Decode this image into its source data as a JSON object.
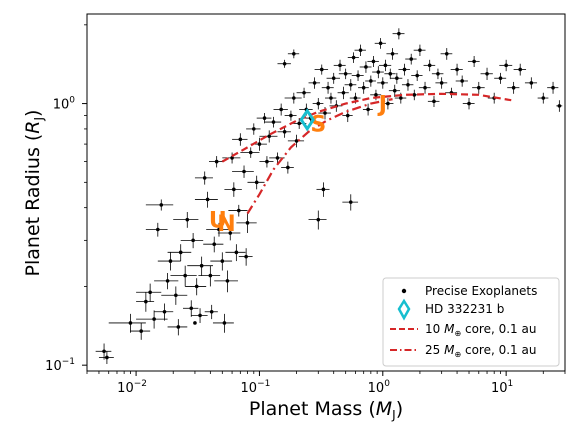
{
  "chart_data": {
    "type": "scatter",
    "title": "",
    "xlabel": "Planet Mass ($M_\\mathrm{J}$)",
    "ylabel": "Planet Radius ($R_\\mathrm{J}$)",
    "x_scale": "log",
    "y_scale": "log",
    "xlim": [
      0.004,
      30
    ],
    "ylim": [
      0.095,
      2.2
    ],
    "x_ticks": [
      {
        "value": 0.01,
        "base": "10",
        "exp": "−2"
      },
      {
        "value": 0.1,
        "base": "10",
        "exp": "−1"
      },
      {
        "value": 1,
        "base": "10",
        "exp": "0"
      },
      {
        "value": 10,
        "base": "10",
        "exp": "1"
      }
    ],
    "y_ticks": [
      {
        "value": 0.1,
        "base": "10",
        "exp": "−1"
      },
      {
        "value": 1,
        "base": "10",
        "exp": "0"
      }
    ],
    "legend_position": "lower right",
    "legend": [
      {
        "label": "Precise Exoplanets",
        "marker": "dot",
        "color": "#000000"
      },
      {
        "label": "HD 332231 b",
        "marker": "diamond",
        "color": "#17becf"
      },
      {
        "label": "10 $M_\\oplus$ core, 0.1 au",
        "marker": "dashed",
        "color": "#d62728"
      },
      {
        "label": "25 $M_\\oplus$ core, 0.1 au",
        "marker": "dashdot",
        "color": "#d62728"
      }
    ],
    "series": [
      {
        "name": "Precise Exoplanets",
        "color": "#000000",
        "points": [
          [
            0.0055,
            0.113,
            0.0008,
            0.008
          ],
          [
            0.0058,
            0.107,
            0.0008,
            0.006
          ],
          [
            0.009,
            0.145,
            0.003,
            0.012
          ],
          [
            0.011,
            0.135,
            0.002,
            0.01
          ],
          [
            0.012,
            0.175,
            0.002,
            0.015
          ],
          [
            0.013,
            0.19,
            0.003,
            0.015
          ],
          [
            0.014,
            0.15,
            0.004,
            0.012
          ],
          [
            0.015,
            0.33,
            0.003,
            0.02
          ],
          [
            0.016,
            0.41,
            0.004,
            0.02
          ],
          [
            0.017,
            0.16,
            0.003,
            0.012
          ],
          [
            0.018,
            0.21,
            0.004,
            0.015
          ],
          [
            0.019,
            0.25,
            0.004,
            0.02
          ],
          [
            0.021,
            0.185,
            0.005,
            0.015
          ],
          [
            0.022,
            0.14,
            0.004,
            0.01
          ],
          [
            0.023,
            0.27,
            0.005,
            0.02
          ],
          [
            0.025,
            0.22,
            0.006,
            0.02
          ],
          [
            0.026,
            0.36,
            0.006,
            0.025
          ],
          [
            0.028,
            0.165,
            0.004,
            0.012
          ],
          [
            0.029,
            0.3,
            0.006,
            0.02
          ],
          [
            0.031,
            0.2,
            0.006,
            0.015
          ],
          [
            0.033,
            0.155,
            0.005,
            0.01
          ],
          [
            0.034,
            0.24,
            0.008,
            0.02
          ],
          [
            0.036,
            0.52,
            0.006,
            0.03
          ],
          [
            0.038,
            0.43,
            0.008,
            0.03
          ],
          [
            0.04,
            0.22,
            0.008,
            0.02
          ],
          [
            0.041,
            0.16,
            0.005,
            0.01
          ],
          [
            0.043,
            0.29,
            0.008,
            0.02
          ],
          [
            0.045,
            0.6,
            0.006,
            0.03
          ],
          [
            0.047,
            0.33,
            0.01,
            0.02
          ],
          [
            0.05,
            0.25,
            0.01,
            0.02
          ],
          [
            0.052,
            0.145,
            0.01,
            0.012
          ],
          [
            0.055,
            0.21,
            0.012,
            0.02
          ],
          [
            0.058,
            0.32,
            0.012,
            0.02
          ],
          [
            0.06,
            0.62,
            0.01,
            0.03
          ],
          [
            0.062,
            0.47,
            0.01,
            0.03
          ],
          [
            0.065,
            0.27,
            0.012,
            0.02
          ],
          [
            0.068,
            0.39,
            0.012,
            0.02
          ],
          [
            0.07,
            0.73,
            0.01,
            0.04
          ],
          [
            0.075,
            0.55,
            0.015,
            0.03
          ],
          [
            0.078,
            0.26,
            0.01,
            0.02
          ],
          [
            0.08,
            0.35,
            0.015,
            0.03
          ],
          [
            0.085,
            0.65,
            0.015,
            0.03
          ],
          [
            0.09,
            0.8,
            0.012,
            0.04
          ],
          [
            0.095,
            0.5,
            0.015,
            0.03
          ],
          [
            0.1,
            0.7,
            0.015,
            0.04
          ],
          [
            0.11,
            0.88,
            0.015,
            0.04
          ],
          [
            0.115,
            0.6,
            0.015,
            0.03
          ],
          [
            0.12,
            0.75,
            0.02,
            0.04
          ],
          [
            0.13,
            0.85,
            0.02,
            0.04
          ],
          [
            0.14,
            0.62,
            0.02,
            0.03
          ],
          [
            0.15,
            0.95,
            0.02,
            0.05
          ],
          [
            0.16,
            0.78,
            0.02,
            0.04
          ],
          [
            0.17,
            0.57,
            0.02,
            0.03
          ],
          [
            0.18,
            0.9,
            0.02,
            0.04
          ],
          [
            0.19,
            1.05,
            0.03,
            0.05
          ],
          [
            0.2,
            0.72,
            0.03,
            0.04
          ],
          [
            0.21,
            0.84,
            0.03,
            0.04
          ],
          [
            0.23,
            1.1,
            0.03,
            0.05
          ],
          [
            0.24,
            0.95,
            0.03,
            0.05
          ],
          [
            0.26,
            0.88,
            0.03,
            0.04
          ],
          [
            0.28,
            1.2,
            0.03,
            0.06
          ],
          [
            0.3,
            1.0,
            0.03,
            0.05
          ],
          [
            0.3,
            0.36,
            0.05,
            0.03
          ],
          [
            0.32,
            1.35,
            0.04,
            0.06
          ],
          [
            0.34,
            0.92,
            0.04,
            0.05
          ],
          [
            0.36,
            1.15,
            0.04,
            0.06
          ],
          [
            0.38,
            1.05,
            0.04,
            0.05
          ],
          [
            0.4,
            1.25,
            0.05,
            0.06
          ],
          [
            0.42,
            0.98,
            0.05,
            0.05
          ],
          [
            0.45,
            1.4,
            0.05,
            0.07
          ],
          [
            0.48,
            1.1,
            0.05,
            0.06
          ],
          [
            0.5,
            1.3,
            0.06,
            0.06
          ],
          [
            0.52,
            0.9,
            0.05,
            0.05
          ],
          [
            0.55,
            1.18,
            0.06,
            0.06
          ],
          [
            0.58,
            1.5,
            0.06,
            0.07
          ],
          [
            0.6,
            1.05,
            0.06,
            0.05
          ],
          [
            0.63,
            1.28,
            0.07,
            0.06
          ],
          [
            0.66,
            1.6,
            0.07,
            0.08
          ],
          [
            0.7,
            1.15,
            0.07,
            0.06
          ],
          [
            0.73,
            1.38,
            0.08,
            0.07
          ],
          [
            0.76,
            0.95,
            0.07,
            0.05
          ],
          [
            0.8,
            1.22,
            0.08,
            0.06
          ],
          [
            0.84,
            1.45,
            0.09,
            0.07
          ],
          [
            0.88,
            1.08,
            0.09,
            0.05
          ],
          [
            0.92,
            1.32,
            0.1,
            0.07
          ],
          [
            0.96,
            1.7,
            0.1,
            0.08
          ],
          [
            1.0,
            1.2,
            0.1,
            0.06
          ],
          [
            1.05,
            1.4,
            0.12,
            0.07
          ],
          [
            1.1,
            1.0,
            0.12,
            0.05
          ],
          [
            1.15,
            1.3,
            0.12,
            0.06
          ],
          [
            1.2,
            1.55,
            0.13,
            0.08
          ],
          [
            1.25,
            1.12,
            0.13,
            0.06
          ],
          [
            1.3,
            1.25,
            0.14,
            0.06
          ],
          [
            1.35,
            1.85,
            0.15,
            0.09
          ],
          [
            1.4,
            1.05,
            0.15,
            0.05
          ],
          [
            1.5,
            1.35,
            0.16,
            0.07
          ],
          [
            1.6,
            1.18,
            0.17,
            0.06
          ],
          [
            1.7,
            1.48,
            0.18,
            0.07
          ],
          [
            1.8,
            1.08,
            0.2,
            0.05
          ],
          [
            1.9,
            1.28,
            0.2,
            0.06
          ],
          [
            2.0,
            1.6,
            0.22,
            0.08
          ],
          [
            2.2,
            1.15,
            0.24,
            0.06
          ],
          [
            2.4,
            1.4,
            0.26,
            0.07
          ],
          [
            2.6,
            1.02,
            0.28,
            0.05
          ],
          [
            2.8,
            1.3,
            0.3,
            0.06
          ],
          [
            3.0,
            1.2,
            0.33,
            0.06
          ],
          [
            3.3,
            1.55,
            0.36,
            0.08
          ],
          [
            3.6,
            1.1,
            0.4,
            0.05
          ],
          [
            4.0,
            1.35,
            0.45,
            0.07
          ],
          [
            4.4,
            1.22,
            0.5,
            0.06
          ],
          [
            5.0,
            1.0,
            0.55,
            0.05
          ],
          [
            5.5,
            1.45,
            0.6,
            0.07
          ],
          [
            6.0,
            1.15,
            0.7,
            0.06
          ],
          [
            7.0,
            1.3,
            0.8,
            0.07
          ],
          [
            8.0,
            1.05,
            0.9,
            0.05
          ],
          [
            9.0,
            1.25,
            1.0,
            0.06
          ],
          [
            10.0,
            1.4,
            1.2,
            0.07
          ],
          [
            11.5,
            1.15,
            1.3,
            0.06
          ],
          [
            13.0,
            1.35,
            1.5,
            0.07
          ],
          [
            16.0,
            1.2,
            1.8,
            0.06
          ],
          [
            20.0,
            1.05,
            2.0,
            0.05
          ],
          [
            24.0,
            1.15,
            2.5,
            0.06
          ],
          [
            27.0,
            0.98,
            1.5,
            0.05
          ],
          [
            0.03,
            0.145,
            0.0,
            0.0
          ],
          [
            0.19,
            1.55,
            0.02,
            0.06
          ],
          [
            0.16,
            1.42,
            0.02,
            0.05
          ],
          [
            0.55,
            0.42,
            0.08,
            0.03
          ],
          [
            0.33,
            0.47,
            0.04,
            0.03
          ]
        ]
      },
      {
        "name": "HD 332231 b",
        "color": "#17becf",
        "points": [
          [
            0.244,
            0.867
          ]
        ]
      },
      {
        "name": "10 $M_\\oplus$ core, 0.1 au",
        "color": "#d62728",
        "line": [
          [
            0.05,
            0.6
          ],
          [
            0.08,
            0.68
          ],
          [
            0.12,
            0.76
          ],
          [
            0.2,
            0.86
          ],
          [
            0.3,
            0.93
          ],
          [
            0.5,
            1.0
          ],
          [
            0.8,
            1.05
          ],
          [
            1.5,
            1.08
          ],
          [
            3,
            1.09
          ],
          [
            6,
            1.08
          ],
          [
            11,
            1.03
          ]
        ]
      },
      {
        "name": "25 $M_\\oplus$ core, 0.1 au",
        "color": "#d62728",
        "line": [
          [
            0.08,
            0.38
          ],
          [
            0.1,
            0.45
          ],
          [
            0.13,
            0.56
          ],
          [
            0.18,
            0.68
          ],
          [
            0.25,
            0.78
          ],
          [
            0.35,
            0.86
          ],
          [
            0.5,
            0.93
          ],
          [
            0.8,
            1.0
          ],
          [
            1.2,
            1.04
          ]
        ]
      }
    ],
    "annotations": [
      {
        "text": "J",
        "x": 1.0,
        "y": 1.0,
        "color": "#ff7f0e"
      },
      {
        "text": "S",
        "x": 0.3,
        "y": 0.84,
        "color": "#ff7f0e"
      },
      {
        "text": "U",
        "x": 0.046,
        "y": 0.36,
        "color": "#ff7f0e"
      },
      {
        "text": "N",
        "x": 0.054,
        "y": 0.35,
        "color": "#ff7f0e"
      }
    ]
  }
}
